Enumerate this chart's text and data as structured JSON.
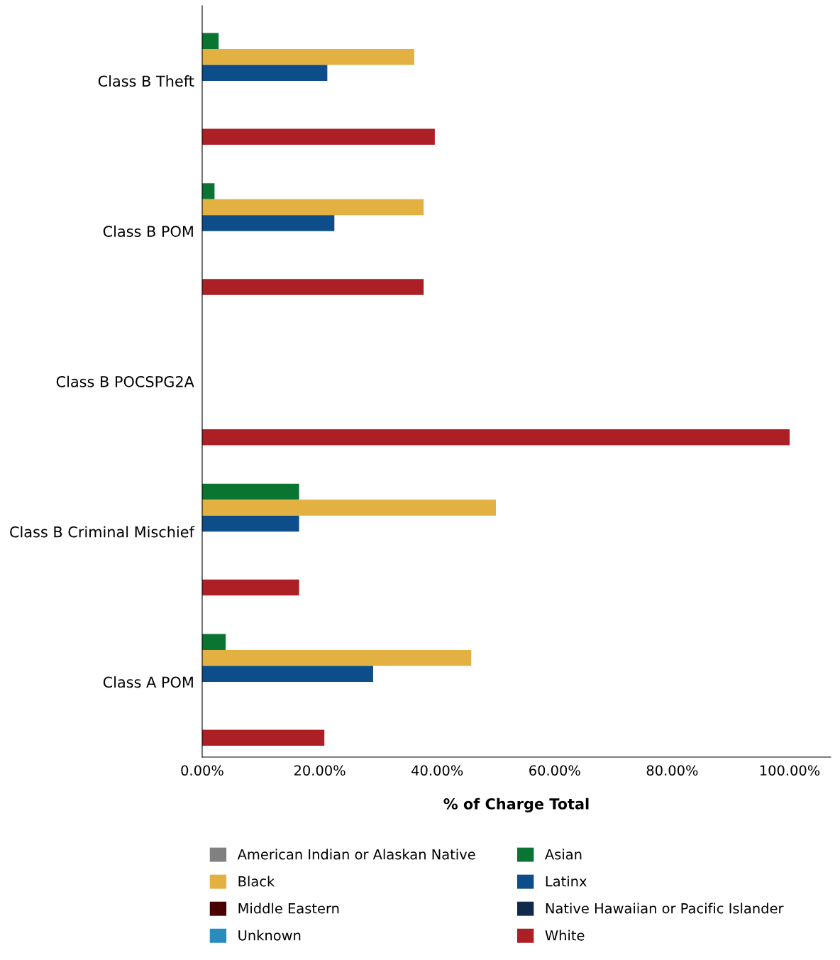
{
  "chart_data": {
    "type": "bar",
    "orientation": "horizontal",
    "xlabel": "% of Charge Total",
    "categories": [
      "Class B Theft",
      "Class B POM",
      "Class B POCSPG2A",
      "Class B Criminal Mischief",
      "Class A POM"
    ],
    "series": [
      {
        "name": "American Indian or Alaskan Native",
        "color": "#808080",
        "values": [
          null,
          null,
          null,
          null,
          null
        ]
      },
      {
        "name": "Asian",
        "color": "#0a7533",
        "values": [
          2.8,
          2.1,
          null,
          16.5,
          4.0
        ]
      },
      {
        "name": "Black",
        "color": "#e2b142",
        "values": [
          36.1,
          37.7,
          null,
          50.0,
          45.8
        ]
      },
      {
        "name": "Latinx",
        "color": "#0c4d8a",
        "values": [
          21.3,
          22.5,
          null,
          16.5,
          29.1
        ]
      },
      {
        "name": "Middle Eastern",
        "color": "#4a0000",
        "values": [
          null,
          null,
          null,
          null,
          null
        ]
      },
      {
        "name": "Native Hawaiian or Pacific Islander",
        "color": "#0f2a4a",
        "values": [
          null,
          null,
          null,
          null,
          null
        ]
      },
      {
        "name": "Unknown",
        "color": "#2a8bbf",
        "values": [
          null,
          null,
          null,
          null,
          null
        ]
      },
      {
        "name": "White",
        "color": "#ab1f25",
        "values": [
          39.6,
          37.7,
          100,
          16.5,
          20.8
        ]
      }
    ],
    "xlim": [
      0,
      107
    ],
    "xticks": [
      {
        "value": 0,
        "label": "0.00%"
      },
      {
        "value": 20,
        "label": "20.00%"
      },
      {
        "value": 40,
        "label": "40.00%"
      },
      {
        "value": 60,
        "label": "60.00%"
      },
      {
        "value": 80,
        "label": "80.00%"
      },
      {
        "value": 100,
        "label": "100.00%"
      }
    ],
    "grid": false,
    "legend": "bottom"
  }
}
